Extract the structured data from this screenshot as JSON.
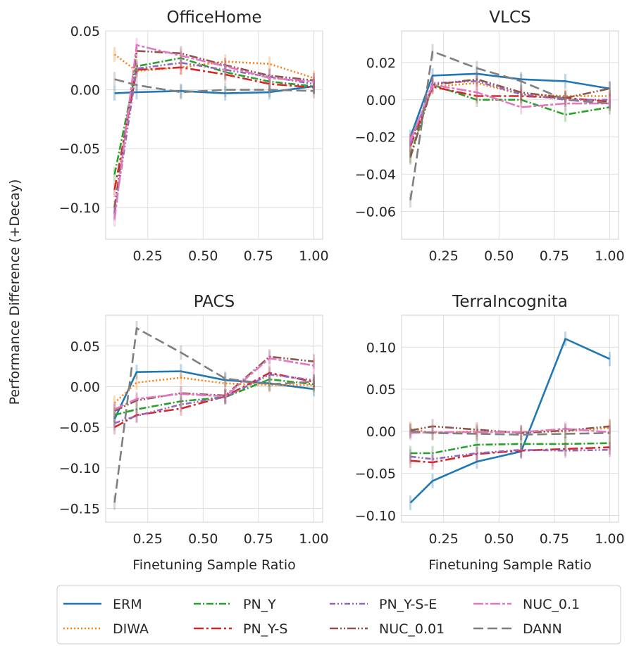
{
  "figure": {
    "ylabel": "Performance Difference (+Decay)",
    "xlabel": "Finetuning Sample Ratio"
  },
  "series_styles": [
    {
      "name": "ERM",
      "color": "#1f77b4",
      "dash": ""
    },
    {
      "name": "DIWA",
      "color": "#ff7f0e",
      "dash": "2,3"
    },
    {
      "name": "PN_Y",
      "color": "#2ca02c",
      "dash": "10,3,2,3"
    },
    {
      "name": "PN_Y-S",
      "color": "#d62728",
      "dash": "14,4,3,4"
    },
    {
      "name": "PN_Y-S-E",
      "color": "#9467bd",
      "dash": "8,3,2,3,2,3"
    },
    {
      "name": "NUC_0.01",
      "color": "#8c564b",
      "dash": "12,3,2,3,2,3"
    },
    {
      "name": "NUC_0.1",
      "color": "#e377c2",
      "dash": "14,3,4,3"
    },
    {
      "name": "DANN",
      "color": "#7f7f7f",
      "dash": "14,6"
    }
  ],
  "chart_data": [
    {
      "type": "line",
      "title": "OfficeHome",
      "xlabel": "",
      "ylabel": "",
      "x": [
        0.1,
        0.2,
        0.4,
        0.6,
        0.8,
        1.0
      ],
      "xlim": [
        0.06,
        1.04
      ],
      "ylim": [
        -0.127,
        0.05
      ],
      "xticks": [
        "0.25",
        "0.50",
        "0.75",
        "1.00"
      ],
      "yticks": [
        "0.05",
        "0.00",
        "−0.05",
        "−0.10"
      ],
      "series": [
        {
          "name": "ERM",
          "values": [
            -0.003,
            -0.002,
            -0.001,
            -0.003,
            -0.002,
            0.003
          ]
        },
        {
          "name": "DIWA",
          "values": [
            0.03,
            0.016,
            0.019,
            0.024,
            0.022,
            0.01
          ]
        },
        {
          "name": "PN_Y",
          "values": [
            -0.072,
            0.02,
            0.027,
            0.015,
            0.007,
            0.003
          ]
        },
        {
          "name": "PN_Y-S",
          "values": [
            -0.085,
            0.017,
            0.019,
            0.013,
            0.005,
            0.002
          ]
        },
        {
          "name": "PN_Y-S-E",
          "values": [
            -0.105,
            0.018,
            0.023,
            0.017,
            0.011,
            0.005
          ]
        },
        {
          "name": "NUC_0.01",
          "values": [
            -0.1,
            0.033,
            0.031,
            0.021,
            0.012,
            0.008
          ]
        },
        {
          "name": "NUC_0.1",
          "values": [
            -0.11,
            0.038,
            0.029,
            0.02,
            0.01,
            0.007
          ]
        },
        {
          "name": "DANN",
          "values": [
            0.009,
            0.004,
            -0.002,
            0.0,
            0.0,
            -0.001
          ]
        }
      ]
    },
    {
      "type": "line",
      "title": "VLCS",
      "xlabel": "",
      "ylabel": "",
      "x": [
        0.1,
        0.2,
        0.4,
        0.6,
        0.8,
        1.0
      ],
      "xlim": [
        0.06,
        1.04
      ],
      "ylim": [
        -0.075,
        0.037
      ],
      "xticks": [
        "0.25",
        "0.50",
        "0.75",
        "1.00"
      ],
      "yticks": [
        "0.02",
        "0.00",
        "−0.02",
        "−0.04",
        "−0.06"
      ],
      "series": [
        {
          "name": "ERM",
          "values": [
            -0.02,
            0.013,
            0.014,
            0.011,
            0.01,
            0.006
          ]
        },
        {
          "name": "DIWA",
          "values": [
            -0.022,
            0.007,
            0.009,
            0.003,
            0.002,
            0.002
          ]
        },
        {
          "name": "PN_Y",
          "values": [
            -0.03,
            0.008,
            0.0,
            0.0,
            -0.008,
            -0.004
          ]
        },
        {
          "name": "PN_Y-S",
          "values": [
            -0.025,
            0.007,
            0.002,
            0.002,
            0.001,
            -0.001
          ]
        },
        {
          "name": "PN_Y-S-E",
          "values": [
            -0.024,
            0.009,
            0.01,
            0.003,
            0.0,
            0.0
          ]
        },
        {
          "name": "NUC_0.01",
          "values": [
            -0.031,
            0.008,
            0.011,
            0.004,
            0.001,
            0.006
          ]
        },
        {
          "name": "NUC_0.1",
          "values": [
            -0.022,
            0.008,
            0.004,
            -0.004,
            -0.002,
            -0.002
          ]
        },
        {
          "name": "DANN",
          "values": [
            -0.054,
            0.026,
            0.017,
            0.01,
            0.0,
            -0.002
          ]
        }
      ]
    },
    {
      "type": "line",
      "title": "PACS",
      "xlabel": "Finetuning Sample Ratio",
      "ylabel": "",
      "x": [
        0.1,
        0.2,
        0.4,
        0.6,
        0.8,
        1.0
      ],
      "xlim": [
        0.06,
        1.04
      ],
      "ylim": [
        -0.167,
        0.088
      ],
      "xticks": [
        "0.25",
        "0.50",
        "0.75",
        "1.00"
      ],
      "yticks": [
        "0.05",
        "0.00",
        "−0.05",
        "−0.10",
        "−0.15"
      ],
      "series": [
        {
          "name": "ERM",
          "values": [
            -0.04,
            0.018,
            0.019,
            0.008,
            0.004,
            -0.003
          ]
        },
        {
          "name": "DIWA",
          "values": [
            -0.02,
            0.005,
            0.011,
            0.004,
            0.002,
            0.002
          ]
        },
        {
          "name": "PN_Y",
          "values": [
            -0.035,
            -0.028,
            -0.018,
            -0.013,
            0.009,
            0.003
          ]
        },
        {
          "name": "PN_Y-S",
          "values": [
            -0.05,
            -0.035,
            -0.027,
            -0.012,
            0.017,
            0.006
          ]
        },
        {
          "name": "PN_Y-S-E",
          "values": [
            -0.045,
            -0.036,
            -0.022,
            -0.013,
            0.015,
            0.008
          ]
        },
        {
          "name": "NUC_0.01",
          "values": [
            -0.03,
            -0.017,
            -0.008,
            -0.011,
            0.037,
            0.031
          ]
        },
        {
          "name": "NUC_0.1",
          "values": [
            -0.028,
            -0.015,
            -0.009,
            -0.012,
            0.035,
            0.026
          ]
        },
        {
          "name": "DANN",
          "values": [
            -0.143,
            0.072,
            0.042,
            0.01,
            0.003,
            0.006
          ]
        }
      ]
    },
    {
      "type": "line",
      "title": "TerraIncognita",
      "xlabel": "Finetuning Sample Ratio",
      "ylabel": "",
      "x": [
        0.1,
        0.2,
        0.4,
        0.6,
        0.8,
        1.0
      ],
      "xlim": [
        0.06,
        1.04
      ],
      "ylim": [
        -0.108,
        0.138
      ],
      "xticks": [
        "0.25",
        "0.50",
        "0.75",
        "1.00"
      ],
      "yticks": [
        "0.10",
        "0.05",
        "0.00",
        "−0.05",
        "−0.10"
      ],
      "series": [
        {
          "name": "ERM",
          "values": [
            -0.085,
            -0.059,
            -0.036,
            -0.024,
            0.11,
            0.086
          ]
        },
        {
          "name": "DIWA",
          "values": [
            0.003,
            -0.002,
            0.0,
            -0.001,
            0.0,
            0.004
          ]
        },
        {
          "name": "PN_Y",
          "values": [
            -0.026,
            -0.026,
            -0.016,
            -0.015,
            -0.015,
            -0.014
          ]
        },
        {
          "name": "PN_Y-S",
          "values": [
            -0.035,
            -0.037,
            -0.027,
            -0.023,
            -0.021,
            -0.019
          ]
        },
        {
          "name": "PN_Y-S-E",
          "values": [
            -0.03,
            -0.033,
            -0.026,
            -0.022,
            -0.023,
            -0.022
          ]
        },
        {
          "name": "NUC_0.01",
          "values": [
            0.001,
            0.006,
            0.002,
            -0.002,
            0.001,
            0.006
          ]
        },
        {
          "name": "NUC_0.1",
          "values": [
            -0.002,
            -0.001,
            -0.001,
            -0.001,
            0.003,
            -0.001
          ]
        },
        {
          "name": "DANN",
          "values": [
            0.0,
            -0.002,
            -0.003,
            -0.004,
            -0.003,
            -0.002
          ]
        }
      ]
    }
  ],
  "legend": {
    "placement": "bottom",
    "items": [
      "ERM",
      "PN_Y",
      "PN_Y-S-E",
      "NUC_0.1",
      "DIWA",
      "PN_Y-S",
      "NUC_0.01",
      "DANN"
    ]
  }
}
